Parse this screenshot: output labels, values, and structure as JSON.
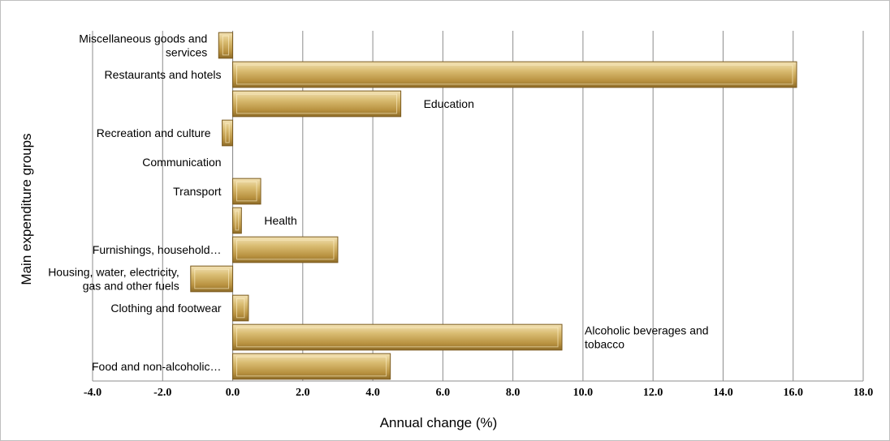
{
  "chart_data": {
    "type": "bar",
    "orientation": "horizontal",
    "xlabel": "Annual change (%)",
    "ylabel": "Main expenditure groups",
    "xlim": [
      -4.0,
      18.0
    ],
    "xticks": [
      -4.0,
      -2.0,
      0.0,
      2.0,
      4.0,
      6.0,
      8.0,
      10.0,
      12.0,
      14.0,
      16.0,
      18.0
    ],
    "tick_labels": [
      "-4.0",
      "-2.0",
      "0.0",
      "2.0",
      "4.0",
      "6.0",
      "8.0",
      "10.0",
      "12.0",
      "14.0",
      "16.0",
      "18.0"
    ],
    "grid": "vertical",
    "bar_color": "#c9a95c",
    "categories": [
      {
        "label": [
          "Food and non-alcoholic…"
        ],
        "value": 4.5,
        "label_side": "left"
      },
      {
        "label": [
          "Alcoholic beverages and",
          "tobacco"
        ],
        "value": 9.4,
        "label_side": "right"
      },
      {
        "label": [
          "Clothing and footwear"
        ],
        "value": 0.45,
        "label_side": "left"
      },
      {
        "label": [
          "Housing, water, electricity,",
          "gas and other fuels"
        ],
        "value": -1.2,
        "label_side": "left"
      },
      {
        "label": [
          "Furnishings, household…"
        ],
        "value": 3.0,
        "label_side": "left"
      },
      {
        "label": [
          "Health"
        ],
        "value": 0.25,
        "label_side": "right"
      },
      {
        "label": [
          "Transport"
        ],
        "value": 0.8,
        "label_side": "left"
      },
      {
        "label": [
          "Communication"
        ],
        "value": 0.0,
        "label_side": "left"
      },
      {
        "label": [
          "Recreation and culture"
        ],
        "value": -0.3,
        "label_side": "left"
      },
      {
        "label": [
          "Education"
        ],
        "value": 4.8,
        "label_side": "right"
      },
      {
        "label": [
          "Restaurants and hotels"
        ],
        "value": 16.1,
        "label_side": "left"
      },
      {
        "label": [
          "Miscellaneous goods and",
          "services"
        ],
        "value": -0.4,
        "label_side": "left"
      }
    ]
  }
}
